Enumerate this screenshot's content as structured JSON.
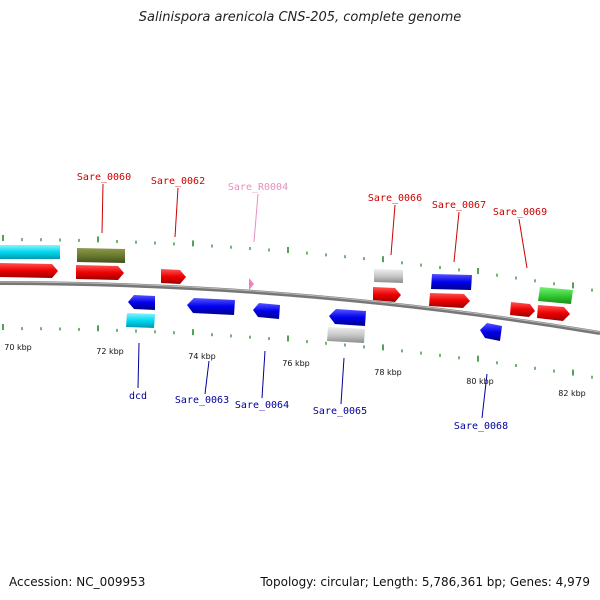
{
  "title": "Salinispora arenicola CNS-205, complete genome",
  "footer": {
    "accession": "Accession: NC_009953",
    "summary": "Topology: circular; Length: 5,786,361 bp; Genes: 4,979"
  },
  "colors": {
    "backbone": "#8c8c8c",
    "tick": "#2a8a2a",
    "forward_label": "#cc0000",
    "reverse_label": "#000099",
    "rna_label": "#e58fc0"
  },
  "scale_labels": [
    "70 kbp",
    "72 kbp",
    "74 kbp",
    "76 kbp",
    "78 kbp",
    "80 kbp",
    "82 kbp"
  ],
  "gene_labels_top": [
    "Sare_0060",
    "Sare_0062",
    "Sare_R0004",
    "Sare_0066",
    "Sare_0067",
    "Sare_0069"
  ],
  "gene_labels_bottom": [
    "dcd",
    "Sare_0063",
    "Sare_0064",
    "Sare_0065",
    "Sare_0068"
  ]
}
